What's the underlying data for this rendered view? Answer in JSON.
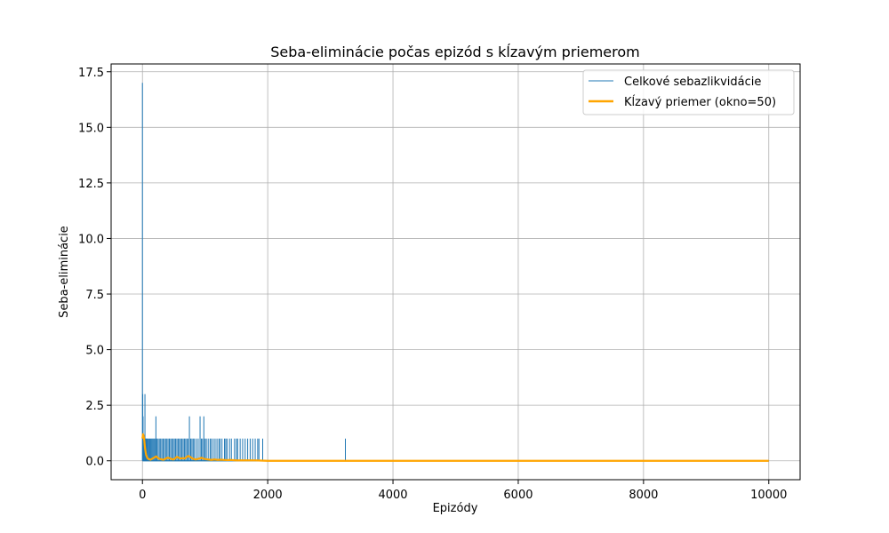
{
  "chart_data": {
    "type": "line",
    "title": "Seba-eliminácie počas epizód s kĺzavým priemerom",
    "xlabel": "Epizódy",
    "ylabel": "Seba-eliminácie",
    "xlim": [
      -500,
      10500
    ],
    "ylim": [
      -0.85,
      17.85
    ],
    "xticks": [
      0,
      2000,
      4000,
      6000,
      8000,
      10000
    ],
    "xtick_labels": [
      "0",
      "2000",
      "4000",
      "6000",
      "8000",
      "10000"
    ],
    "yticks": [
      0,
      2.5,
      5,
      7.5,
      10,
      12.5,
      15,
      17.5
    ],
    "ytick_labels": [
      "0.0",
      "2.5",
      "5.0",
      "7.5",
      "10.0",
      "12.5",
      "15.0",
      "17.5"
    ],
    "grid": true,
    "legend_position": "top-right",
    "series": [
      {
        "name": "Celkové sebazlikvidácie",
        "color": "#1f77b4",
        "style": "spikes",
        "x": [
          0,
          5,
          10,
          15,
          20,
          30,
          40,
          50,
          60,
          70,
          80,
          95,
          110,
          125,
          140,
          155,
          170,
          185,
          200,
          215,
          230,
          250,
          270,
          290,
          310,
          330,
          350,
          370,
          390,
          410,
          430,
          450,
          470,
          490,
          510,
          530,
          550,
          570,
          590,
          610,
          630,
          650,
          670,
          690,
          710,
          730,
          750,
          770,
          790,
          810,
          830,
          860,
          890,
          920,
          940,
          960,
          980,
          1000,
          1020,
          1050,
          1080,
          1100,
          1130,
          1160,
          1190,
          1220,
          1240,
          1270,
          1310,
          1330,
          1350,
          1390,
          1420,
          1470,
          1500,
          1520,
          1560,
          1600,
          1640,
          1680,
          1720,
          1760,
          1800,
          1840,
          1860,
          1920,
          3240
        ],
        "y": [
          17,
          3,
          2,
          1,
          1,
          1,
          3,
          1,
          1,
          1,
          1,
          1,
          1,
          1,
          1,
          1,
          1,
          1,
          1,
          2,
          1,
          1,
          1,
          1,
          1,
          1,
          1,
          1,
          1,
          1,
          1,
          1,
          1,
          1,
          1,
          1,
          1,
          1,
          1,
          1,
          1,
          1,
          1,
          1,
          1,
          1,
          2,
          1,
          1,
          1,
          1,
          1,
          1,
          2,
          1,
          1,
          2,
          1,
          1,
          1,
          1,
          1,
          1,
          1,
          1,
          1,
          1,
          1,
          1,
          1,
          1,
          1,
          1,
          1,
          1,
          1,
          1,
          1,
          1,
          1,
          1,
          1,
          1,
          1,
          1,
          1,
          1
        ]
      },
      {
        "name": "Kĺzavý priemer (okno=50)",
        "color": "#ffa500",
        "style": "line",
        "x": [
          0,
          10,
          20,
          30,
          40,
          50,
          60,
          80,
          100,
          130,
          160,
          190,
          220,
          250,
          280,
          310,
          340,
          370,
          400,
          430,
          460,
          490,
          520,
          550,
          580,
          610,
          640,
          670,
          700,
          730,
          760,
          790,
          820,
          850,
          880,
          910,
          940,
          970,
          1000,
          1050,
          1100,
          1150,
          1200,
          1250,
          1300,
          1350,
          1400,
          1450,
          1500,
          1600,
          1700,
          1800,
          1900,
          2000,
          3000,
          3240,
          3300,
          4000,
          6000,
          8000,
          10000
        ],
        "y": [
          1.0,
          1.2,
          1.1,
          0.9,
          0.6,
          0.4,
          0.25,
          0.12,
          0.08,
          0.05,
          0.1,
          0.15,
          0.2,
          0.12,
          0.08,
          0.06,
          0.05,
          0.1,
          0.14,
          0.12,
          0.08,
          0.06,
          0.1,
          0.18,
          0.14,
          0.1,
          0.12,
          0.1,
          0.16,
          0.22,
          0.18,
          0.12,
          0.08,
          0.06,
          0.08,
          0.1,
          0.14,
          0.1,
          0.08,
          0.06,
          0.04,
          0.06,
          0.04,
          0.05,
          0.04,
          0.03,
          0.04,
          0.03,
          0.02,
          0.02,
          0.02,
          0.02,
          0.01,
          0.0,
          0.0,
          0.0,
          0.0,
          0.0,
          0.0,
          0.0,
          0.0
        ]
      }
    ]
  }
}
